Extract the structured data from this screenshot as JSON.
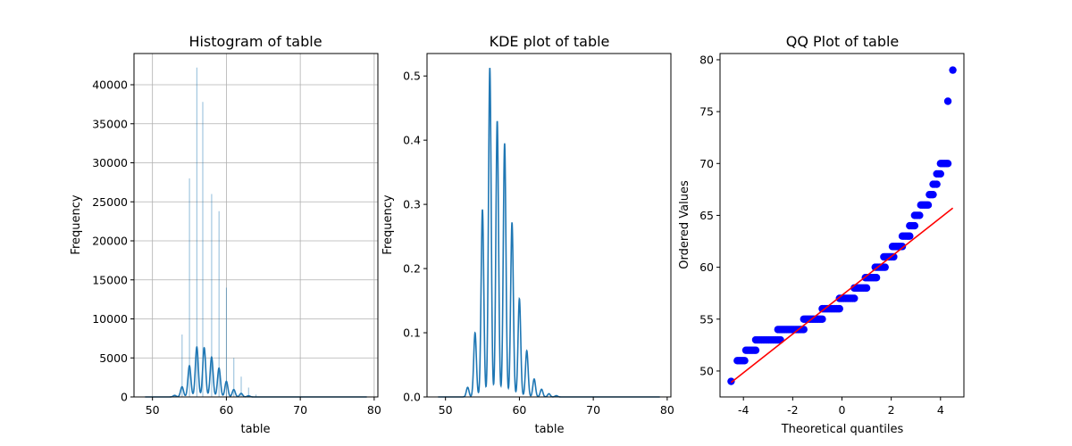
{
  "chart_data": [
    {
      "type": "bar",
      "title": "Histogram of table",
      "xlabel": "table",
      "ylabel": "Frequency",
      "xlim": [
        47.5,
        80.5
      ],
      "ylim": [
        0,
        44000
      ],
      "xticks": [
        50,
        60,
        70,
        80
      ],
      "yticks": [
        0,
        5000,
        10000,
        15000,
        20000,
        25000,
        30000,
        35000,
        40000
      ],
      "grid": true,
      "bar_color": "#1f77b4",
      "line_color": "#1f77b4",
      "bars": [
        {
          "x": 53.0,
          "y": 300
        },
        {
          "x": 54.0,
          "y": 8000
        },
        {
          "x": 55.0,
          "y": 28000
        },
        {
          "x": 56.0,
          "y": 42200
        },
        {
          "x": 56.8,
          "y": 37800
        },
        {
          "x": 58.0,
          "y": 26000
        },
        {
          "x": 59.0,
          "y": 23800
        },
        {
          "x": 60.0,
          "y": 14000
        },
        {
          "x": 61.0,
          "y": 5000
        },
        {
          "x": 62.0,
          "y": 2600
        },
        {
          "x": 63.0,
          "y": 1200
        },
        {
          "x": 64.0,
          "y": 300
        }
      ],
      "density_peaks": [
        {
          "x": 53,
          "y": 200
        },
        {
          "x": 54,
          "y": 1300
        },
        {
          "x": 55,
          "y": 4000
        },
        {
          "x": 56,
          "y": 6400
        },
        {
          "x": 57,
          "y": 6300
        },
        {
          "x": 58,
          "y": 5100
        },
        {
          "x": 59,
          "y": 3700
        },
        {
          "x": 60,
          "y": 2000
        },
        {
          "x": 61,
          "y": 950
        },
        {
          "x": 62,
          "y": 450
        },
        {
          "x": 63,
          "y": 150
        }
      ],
      "density_range": [
        49,
        79
      ]
    },
    {
      "type": "line",
      "title": "KDE plot of table",
      "xlabel": "table",
      "ylabel": "Frequency",
      "xlim": [
        47.5,
        80.5
      ],
      "ylim": [
        0,
        0.535
      ],
      "xticks": [
        50,
        60,
        70,
        80
      ],
      "yticks": [
        0.0,
        0.1,
        0.2,
        0.3,
        0.4,
        0.5
      ],
      "grid": false,
      "line_color": "#1f77b4",
      "peaks": [
        {
          "x": 53,
          "y": 0.015
        },
        {
          "x": 54,
          "y": 0.1
        },
        {
          "x": 55,
          "y": 0.292
        },
        {
          "x": 56,
          "y": 0.513
        },
        {
          "x": 57,
          "y": 0.43
        },
        {
          "x": 58,
          "y": 0.395
        },
        {
          "x": 59,
          "y": 0.272
        },
        {
          "x": 60,
          "y": 0.153
        },
        {
          "x": 61,
          "y": 0.072
        },
        {
          "x": 62,
          "y": 0.028
        },
        {
          "x": 63,
          "y": 0.012
        },
        {
          "x": 64,
          "y": 0.005
        },
        {
          "x": 65,
          "y": 0.002
        }
      ],
      "density_range": [
        49,
        79
      ]
    },
    {
      "type": "scatter",
      "title": "QQ Plot of table",
      "xlabel": "Theoretical quantiles",
      "ylabel": "Ordered Values",
      "xlim": [
        -4.95,
        4.95
      ],
      "ylim": [
        47.5,
        80.6
      ],
      "xticks": [
        -4,
        -2,
        0,
        2,
        4
      ],
      "yticks": [
        50,
        55,
        60,
        65,
        70,
        75,
        80
      ],
      "grid": false,
      "point_color": "#0000ff",
      "line_color": "#ff0000",
      "fit_line": {
        "x": [
          -4.5,
          4.5
        ],
        "y": [
          48.9,
          65.7
        ]
      },
      "segments": [
        {
          "y": 51,
          "x_start": -4.25,
          "x_end": -3.95
        },
        {
          "y": 52,
          "x_start": -3.9,
          "x_end": -3.5
        },
        {
          "y": 53,
          "x_start": -3.5,
          "x_end": -2.5
        },
        {
          "y": 54,
          "x_start": -2.6,
          "x_end": -1.55
        },
        {
          "y": 55,
          "x_start": -1.55,
          "x_end": -0.8
        },
        {
          "y": 56,
          "x_start": -0.8,
          "x_end": -0.1
        },
        {
          "y": 57,
          "x_start": -0.1,
          "x_end": 0.5
        },
        {
          "y": 58,
          "x_start": 0.5,
          "x_end": 1.0
        },
        {
          "y": 59,
          "x_start": 0.95,
          "x_end": 1.4
        },
        {
          "y": 60,
          "x_start": 1.35,
          "x_end": 1.75
        },
        {
          "y": 61,
          "x_start": 1.7,
          "x_end": 2.1
        },
        {
          "y": 62,
          "x_start": 2.05,
          "x_end": 2.45
        },
        {
          "y": 63,
          "x_start": 2.45,
          "x_end": 2.75
        },
        {
          "y": 64,
          "x_start": 2.75,
          "x_end": 2.95
        },
        {
          "y": 65,
          "x_start": 2.95,
          "x_end": 3.15
        },
        {
          "y": 66,
          "x_start": 3.2,
          "x_end": 3.5
        },
        {
          "y": 67,
          "x_start": 3.55,
          "x_end": 3.7
        },
        {
          "y": 68,
          "x_start": 3.7,
          "x_end": 3.85
        },
        {
          "y": 69,
          "x_start": 3.85,
          "x_end": 4.0
        },
        {
          "y": 70,
          "x_start": 4.0,
          "x_end": 4.3
        }
      ],
      "points": [
        {
          "x": -4.5,
          "y": 49
        },
        {
          "x": 4.3,
          "y": 76
        },
        {
          "x": 4.5,
          "y": 79
        }
      ]
    }
  ]
}
